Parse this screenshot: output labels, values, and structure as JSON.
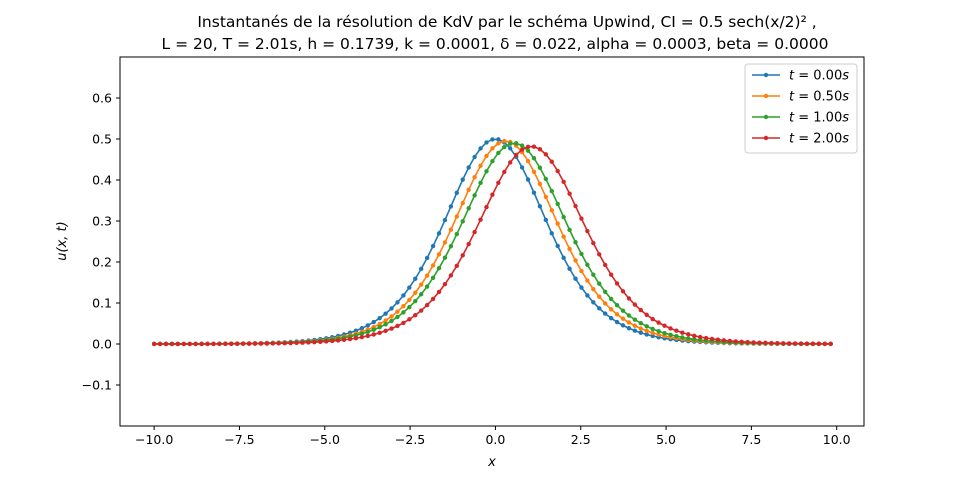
{
  "chart_data": {
    "type": "line",
    "title_line1": "Instantanés de la résolution de KdV par le schéma Upwind, CI = 0.5 sech(x/2)² ,",
    "title_line2": "L = 20, T = 2.01s, h = 0.1739, k = 0.0001, δ = 0.022,  alpha = 0.0003, beta = 0.0000",
    "xlabel": "x",
    "ylabel": "u(x, t)",
    "xlim": [
      -11.0,
      10.8
    ],
    "ylim": [
      -0.2,
      0.7
    ],
    "xticks": [
      -10.0,
      -7.5,
      -5.0,
      -2.5,
      0.0,
      2.5,
      5.0,
      7.5,
      10.0
    ],
    "xtick_labels": [
      "−10.0",
      "−7.5",
      "−5.0",
      "−2.5",
      "0.0",
      "2.5",
      "5.0",
      "7.5",
      "10.0"
    ],
    "yticks": [
      -0.1,
      0.0,
      0.1,
      0.2,
      0.3,
      0.4,
      0.5,
      0.6
    ],
    "ytick_labels": [
      "−0.1",
      "0.0",
      "0.1",
      "0.2",
      "0.3",
      "0.4",
      "0.5",
      "0.6"
    ],
    "grid": false,
    "legend_position": "top-right",
    "x_start": -10.0,
    "x_step": 0.1739,
    "x_count": 115,
    "series": [
      {
        "name": "t = 0.00s",
        "t_label": "0.00",
        "color": "#1f77b4",
        "amplitude": 0.5,
        "center": 0.0,
        "width": 2.0
      },
      {
        "name": "t = 0.50s",
        "t_label": "0.50",
        "color": "#ff7f0e",
        "amplitude": 0.495,
        "center": 0.3,
        "width": 2.02
      },
      {
        "name": "t = 1.00s",
        "t_label": "1.00",
        "color": "#2ca02c",
        "amplitude": 0.49,
        "center": 0.55,
        "width": 2.06
      },
      {
        "name": "t = 2.00s",
        "t_label": "2.00",
        "color": "#d62728",
        "amplitude": 0.482,
        "center": 1.05,
        "width": 2.1
      }
    ]
  }
}
